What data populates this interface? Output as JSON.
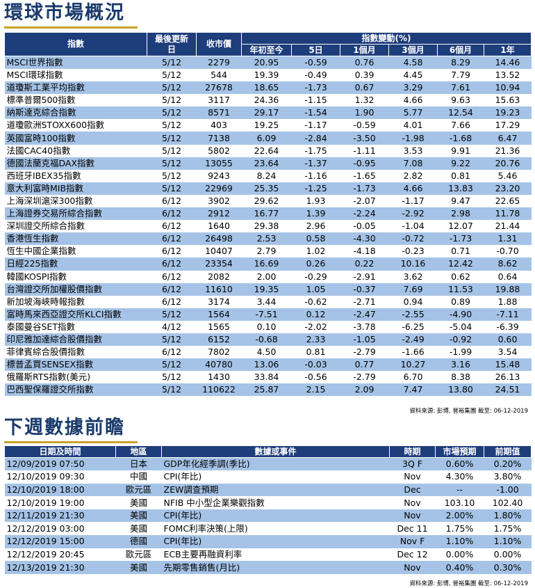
{
  "section1": {
    "title": "環球市場概況",
    "headers": {
      "index": "指數",
      "last_update": "最後更新日",
      "close": "收市價",
      "change_group": "指數變動(%)",
      "ytd": "年初至今",
      "d5": "5日",
      "m1": "1個月",
      "m3": "3個月",
      "m6": "6個月",
      "y1": "1年"
    },
    "rows": [
      [
        "MSCI世界指數",
        "5/12",
        "2279",
        "20.95",
        "-0.59",
        "0.76",
        "4.58",
        "8.29",
        "14.46"
      ],
      [
        "MSCI環球指數",
        "5/12",
        "544",
        "19.39",
        "-0.49",
        "0.39",
        "4.45",
        "7.79",
        "13.52"
      ],
      [
        "道瓊斯工業平均指數",
        "5/12",
        "27678",
        "18.65",
        "-1.73",
        "0.67",
        "3.29",
        "7.61",
        "10.94"
      ],
      [
        "標準普爾500指數",
        "5/12",
        "3117",
        "24.36",
        "-1.15",
        "1.32",
        "4.66",
        "9.63",
        "15.63"
      ],
      [
        "納斯達克綜合指數",
        "5/12",
        "8571",
        "29.17",
        "-1.54",
        "1.90",
        "5.77",
        "12.54",
        "19.23"
      ],
      [
        "道瓊歐洲STOXX600指數",
        "5/12",
        "403",
        "19.25",
        "-1.17",
        "-0.59",
        "4.01",
        "7.66",
        "17.29"
      ],
      [
        "英國富時100指數",
        "5/12",
        "7138",
        "6.09",
        "-2.84",
        "-3.50",
        "-1.98",
        "-1.68",
        "6.47"
      ],
      [
        "法國CAC40指數",
        "5/12",
        "5802",
        "22.64",
        "-1.75",
        "-1.11",
        "3.53",
        "9.91",
        "21.36"
      ],
      [
        "德國法蘭克福DAX指數",
        "5/12",
        "13055",
        "23.64",
        "-1.37",
        "-0.95",
        "7.08",
        "9.22",
        "20.76"
      ],
      [
        "西班牙IBEX35指數",
        "5/12",
        "9243",
        "8.24",
        "-1.16",
        "-1.65",
        "2.82",
        "0.81",
        "5.46"
      ],
      [
        "意大利富時MIB指數",
        "5/12",
        "22969",
        "25.35",
        "-1.25",
        "-1.73",
        "4.66",
        "13.83",
        "23.20"
      ],
      [
        "上海深圳滬深300指數",
        "6/12",
        "3902",
        "29.62",
        "1.93",
        "-2.07",
        "-1.17",
        "9.47",
        "22.65"
      ],
      [
        "上海證券交易所綜合指數",
        "6/12",
        "2912",
        "16.77",
        "1.39",
        "-2.24",
        "-2.92",
        "2.98",
        "11.78"
      ],
      [
        "深圳證交所綜合指數",
        "6/12",
        "1640",
        "29.38",
        "2.96",
        "-0.05",
        "-1.04",
        "12.07",
        "21.44"
      ],
      [
        "香港恆生指數",
        "6/12",
        "26498",
        "2.53",
        "0.58",
        "-4.30",
        "-0.72",
        "-1.73",
        "1.31"
      ],
      [
        "恆生中國企業指數",
        "6/12",
        "10407",
        "2.79",
        "1.02",
        "-4.18",
        "-0.23",
        "0.71",
        "-0.70"
      ],
      [
        "日經225指數",
        "6/12",
        "23354",
        "16.69",
        "0.26",
        "0.22",
        "10.16",
        "12.42",
        "8.62"
      ],
      [
        "韓國KOSPI指數",
        "6/12",
        "2082",
        "2.00",
        "-0.29",
        "-2.91",
        "3.62",
        "0.62",
        "0.64"
      ],
      [
        "台灣證交所加權股價指數",
        "6/12",
        "11610",
        "19.35",
        "1.05",
        "-0.37",
        "7.69",
        "11.53",
        "19.88"
      ],
      [
        "新加坡海峽時報指數",
        "6/12",
        "3174",
        "3.44",
        "-0.62",
        "-2.71",
        "0.94",
        "0.89",
        "1.88"
      ],
      [
        "富時馬來西亞證交所KLCI指數",
        "5/12",
        "1564",
        "-7.51",
        "0.12",
        "-2.47",
        "-2.55",
        "-4.90",
        "-7.11"
      ],
      [
        "泰國曼谷SET指數",
        "4/12",
        "1565",
        "0.10",
        "-2.02",
        "-3.78",
        "-6.25",
        "-5.04",
        "-6.39"
      ],
      [
        "印尼雅加達綜合股價指數",
        "5/12",
        "6152",
        "-0.68",
        "2.33",
        "-1.05",
        "-2.49",
        "-0.92",
        "0.60"
      ],
      [
        "菲律賓綜合股價指數",
        "6/12",
        "7802",
        "4.50",
        "0.81",
        "-2.79",
        "-1.66",
        "-1.99",
        "3.54"
      ],
      [
        "標普孟買SENSEX指數",
        "5/12",
        "40780",
        "13.06",
        "-0.03",
        "0.77",
        "10.27",
        "3.16",
        "15.48"
      ],
      [
        "俄羅斯RTS指數(美元)",
        "5/12",
        "1430",
        "33.84",
        "-0.56",
        "-2.79",
        "6.70",
        "8.38",
        "26.13"
      ],
      [
        "巴西聖保羅證交所指數",
        "5/12",
        "110622",
        "25.87",
        "2.15",
        "2.09",
        "7.47",
        "13.80",
        "24.51"
      ]
    ],
    "source": "資料來源: 彭博, 晉裕集團 截至: 06-12-2019"
  },
  "section2": {
    "title": "下週數據前瞻",
    "headers": {
      "datetime": "日期及時間",
      "region": "地區",
      "event": "數據或事件",
      "period": "時期",
      "forecast": "市場預期",
      "previous": "前期值"
    },
    "rows": [
      [
        "12/09/2019 07:50",
        "日本",
        "GDP年化經季調(季比)",
        "3Q F",
        "0.60%",
        "0.20%"
      ],
      [
        "12/10/2019 09:30",
        "中國",
        "CPI(年比)",
        "Nov",
        "4.30%",
        "3.80%"
      ],
      [
        "12/10/2019 18:00",
        "歐元區",
        "ZEW調查預期",
        "Dec",
        "--",
        "-1.00"
      ],
      [
        "12/10/2019 19:00",
        "美國",
        "NFIB 中小型企業樂觀指數",
        "Nov",
        "103.10",
        "102.40"
      ],
      [
        "12/11/2019 21:30",
        "美國",
        "CPI(年比)",
        "Nov",
        "2.00%",
        "1.80%"
      ],
      [
        "12/12/2019 03:00",
        "美國",
        "FOMC利率決策(上限)",
        "Dec 11",
        "1.75%",
        "1.75%"
      ],
      [
        "12/12/2019 15:00",
        "德國",
        "CPI(年比)",
        "Nov F",
        "1.10%",
        "1.10%"
      ],
      [
        "12/12/2019 20:45",
        "歐元區",
        "ECB主要再融資利率",
        "Dec 12",
        "0.00%",
        "0.00%"
      ],
      [
        "12/13/2019 21:30",
        "美國",
        "先期零售銷售(月比)",
        "Nov",
        "0.40%",
        "0.30%"
      ]
    ],
    "source": "資料來源: 彭博, 晉裕集團 截至: 06-12-2019"
  },
  "colors": {
    "header": "#1e3d7b",
    "stripe": "#a5c3e6",
    "title": "#1a3a6b",
    "underline": "#c9a227"
  }
}
